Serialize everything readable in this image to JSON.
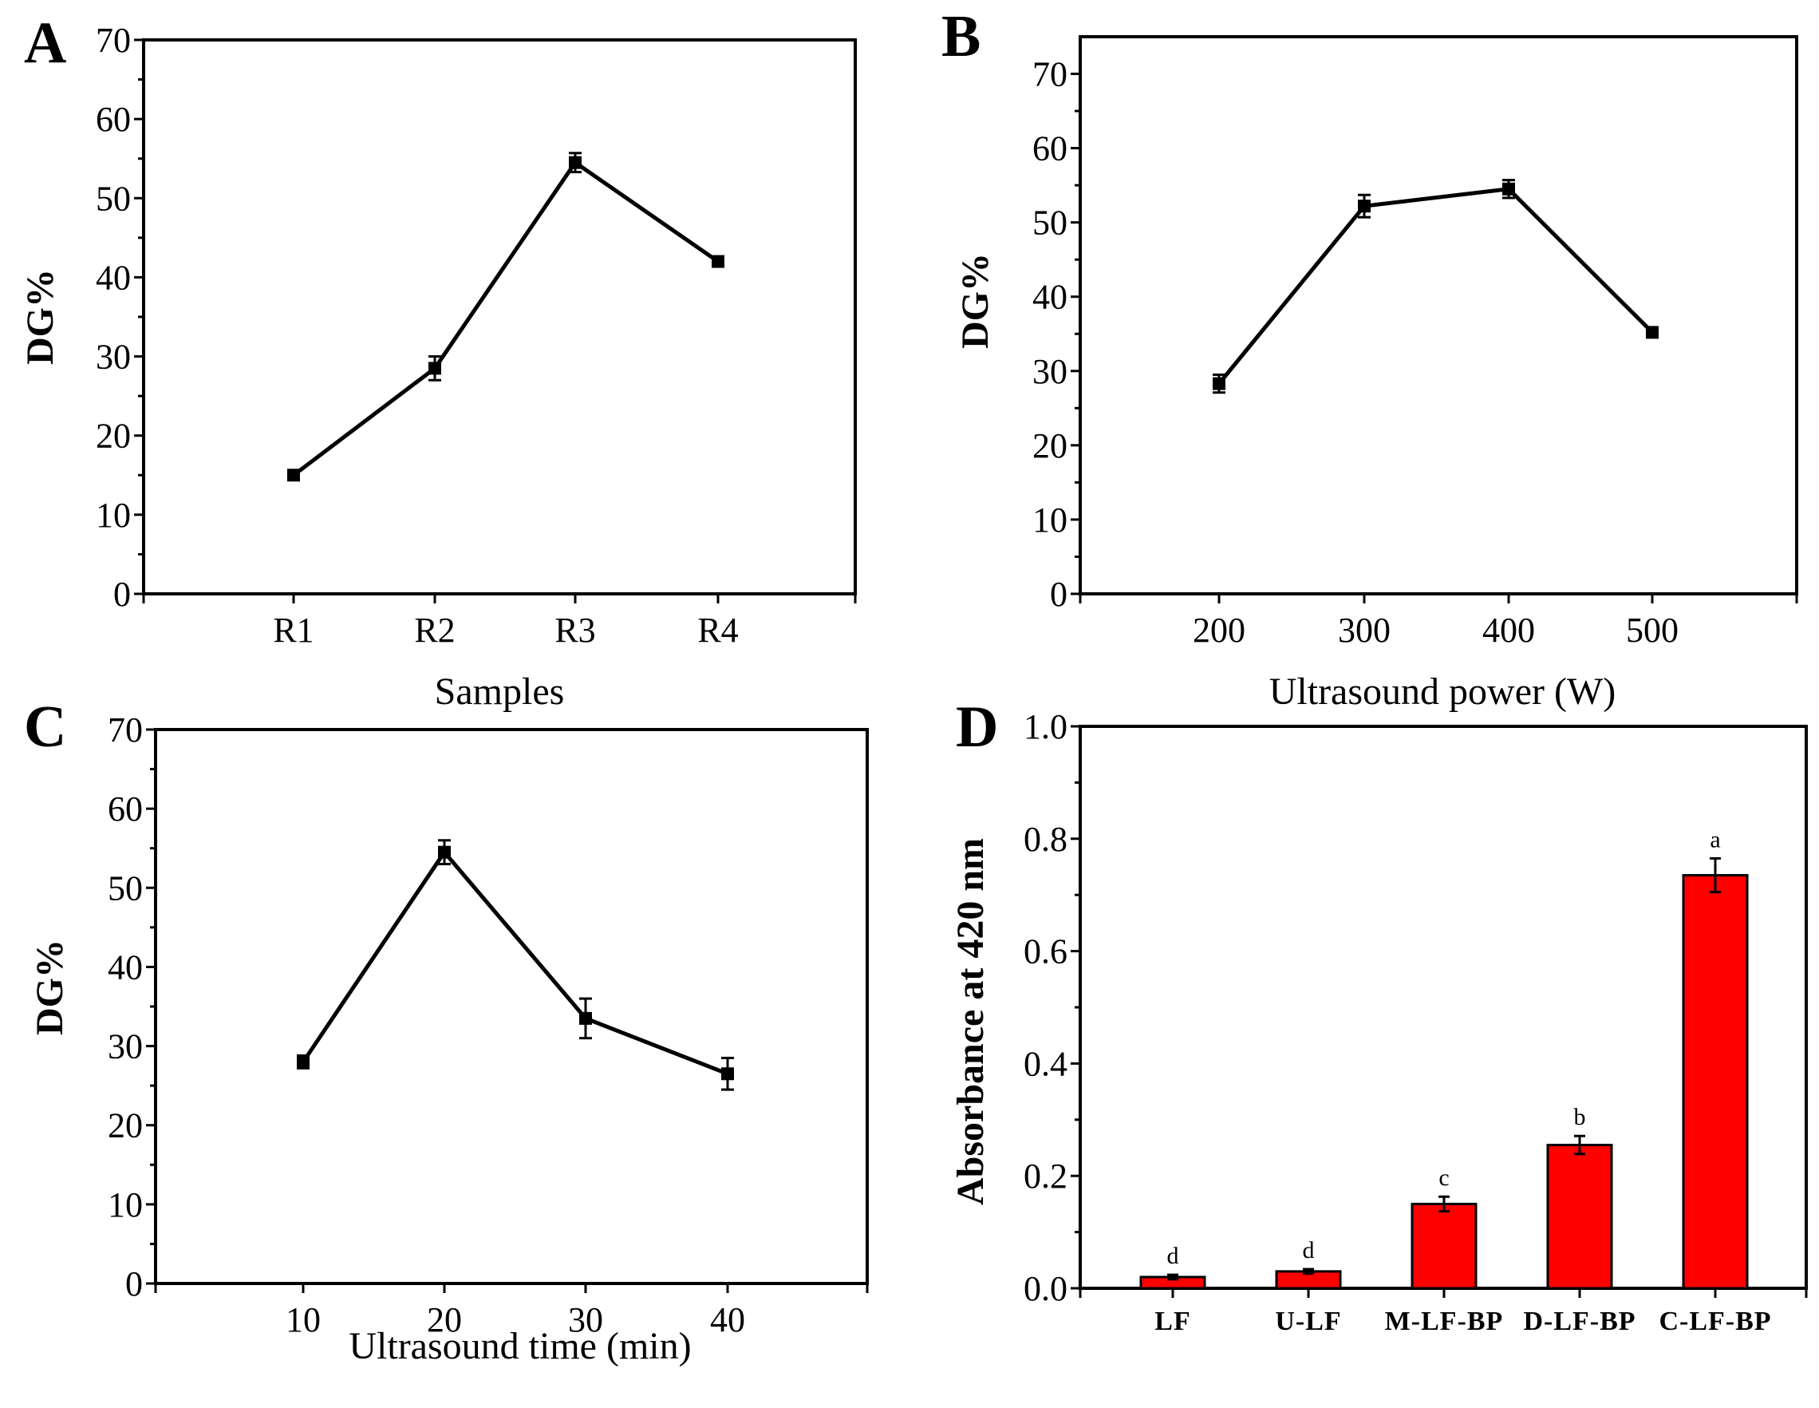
{
  "figure": {
    "panels": [
      "A",
      "B",
      "C",
      "D"
    ]
  },
  "chart_data": [
    {
      "panel": "A",
      "type": "line",
      "categories": [
        "R1",
        "R2",
        "R3",
        "R4"
      ],
      "values": [
        15,
        28.5,
        54.5,
        42
      ],
      "errors": [
        0.5,
        1.5,
        1.2,
        0.4
      ],
      "xlabel": "Samples",
      "ylabel": "DG%",
      "ylim": [
        0,
        70
      ],
      "yticks": [
        "0",
        "10",
        "20",
        "30",
        "40",
        "50",
        "60",
        "70"
      ]
    },
    {
      "panel": "B",
      "type": "line",
      "categories": [
        "200",
        "300",
        "400",
        "500"
      ],
      "values": [
        28.3,
        52.2,
        54.5,
        35.2
      ],
      "errors": [
        1.2,
        1.5,
        1.2,
        0.4
      ],
      "xlabel": "Ultrasound power (W)",
      "ylabel": "DG%",
      "ylim": [
        0,
        75
      ],
      "yticks": [
        "0",
        "10",
        "20",
        "30",
        "40",
        "50",
        "60",
        "70"
      ]
    },
    {
      "panel": "C",
      "type": "line",
      "categories": [
        "10",
        "20",
        "30",
        "40"
      ],
      "values": [
        28,
        54.5,
        33.5,
        26.5
      ],
      "errors": [
        0.8,
        1.5,
        2.5,
        2.0
      ],
      "xlabel": "Ultrasound time (min)",
      "ylabel": "DG%",
      "ylim": [
        0,
        70
      ],
      "yticks": [
        "0",
        "10",
        "20",
        "30",
        "40",
        "50",
        "60",
        "70"
      ]
    },
    {
      "panel": "D",
      "type": "bar",
      "categories": [
        "LF",
        "U-LF",
        "M-LF-BP",
        "D-LF-BP",
        "C-LF-BP"
      ],
      "values": [
        0.02,
        0.03,
        0.15,
        0.255,
        0.735
      ],
      "errors": [
        0.004,
        0.004,
        0.013,
        0.016,
        0.03
      ],
      "significance": [
        "d",
        "d",
        "c",
        "b",
        "a"
      ],
      "xlabel": "",
      "ylabel": "Absorbance at 420 nm",
      "ylim": [
        0,
        1.0
      ],
      "yticks": [
        "0.0",
        "0.2",
        "0.4",
        "0.6",
        "0.8",
        "1.0"
      ],
      "bar_color": "#ff0000"
    }
  ]
}
